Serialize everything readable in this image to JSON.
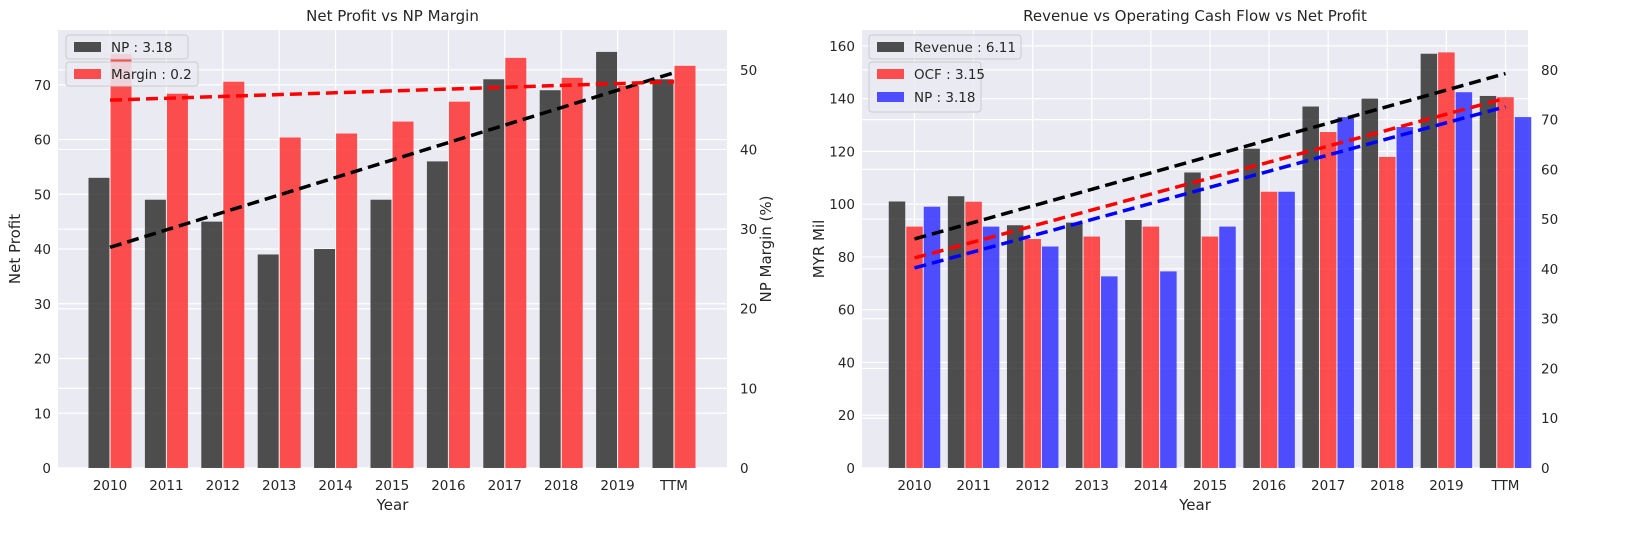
{
  "chart_data": [
    {
      "type": "bar",
      "title": "Net Profit vs NP Margin",
      "xlabel": "Year",
      "ylabel": "Net Profit",
      "y2label": "NP Margin (%)",
      "categories": [
        "2010",
        "2011",
        "2012",
        "2013",
        "2014",
        "2015",
        "2016",
        "2017",
        "2018",
        "2019",
        "TTM"
      ],
      "ylim": [
        0,
        80
      ],
      "y2lim": [
        0,
        55
      ],
      "yticks": [
        0,
        10,
        20,
        30,
        40,
        50,
        60,
        70
      ],
      "y2ticks": [
        0,
        10,
        20,
        30,
        40,
        50
      ],
      "grid": true,
      "legend_position": "top-left",
      "series": [
        {
          "name": "NP : 3.18",
          "axis": "left",
          "color": "#333333",
          "values": [
            53,
            49,
            45,
            39,
            40,
            49,
            56,
            71,
            69,
            76,
            71
          ]
        },
        {
          "name": "Margin : 0.2",
          "axis": "right",
          "color": "#ff3333",
          "values": [
            52,
            47,
            48.5,
            41.5,
            42,
            43.5,
            46,
            51.5,
            49,
            48,
            50.5
          ]
        }
      ],
      "trendlines": [
        {
          "series": "NP : 3.18",
          "axis": "left",
          "color": "#000000",
          "from": [
            0,
            40.3
          ],
          "to": [
            10,
            72.2
          ]
        },
        {
          "series": "Margin : 0.2",
          "axis": "right",
          "color": "#ff0000",
          "from": [
            0,
            46.2
          ],
          "to": [
            10,
            48.5
          ]
        }
      ]
    },
    {
      "type": "bar",
      "title": "Revenue vs Operating Cash Flow vs Net Profit",
      "xlabel": "Year",
      "ylabel": "MYR Mil",
      "categories": [
        "2010",
        "2011",
        "2012",
        "2013",
        "2014",
        "2015",
        "2016",
        "2017",
        "2018",
        "2019",
        "TTM"
      ],
      "ylim": [
        0,
        166
      ],
      "y2lim": [
        0,
        88
      ],
      "yticks": [
        0,
        20,
        40,
        60,
        80,
        100,
        120,
        140,
        160
      ],
      "y2ticks": [
        0,
        10,
        20,
        30,
        40,
        50,
        60,
        70,
        80
      ],
      "grid": true,
      "legend_position": "top-left",
      "series": [
        {
          "name": "Revenue : 6.11",
          "axis": "left",
          "color": "#333333",
          "values": [
            101,
            103,
            92,
            93,
            94,
            112,
            121,
            137,
            140,
            157,
            141
          ]
        },
        {
          "name": "OCF : 3.15",
          "axis": "right",
          "color": "#ff3333",
          "values": [
            48.5,
            53.5,
            46,
            46.5,
            48.5,
            46.5,
            55.5,
            67.5,
            62.5,
            83.5,
            74.5
          ]
        },
        {
          "name": "NP : 3.18",
          "axis": "right",
          "color": "#3333ff",
          "values": [
            52.5,
            48.5,
            44.5,
            38.5,
            39.5,
            48.5,
            55.5,
            70.5,
            68.5,
            75.5,
            70.5
          ]
        }
      ],
      "trendlines": [
        {
          "series": "Revenue : 6.11",
          "axis": "left",
          "color": "#000000",
          "from": [
            0,
            86.8
          ],
          "to": [
            10,
            149.5
          ]
        },
        {
          "series": "OCF : 3.15",
          "axis": "right",
          "color": "#ff0000",
          "from": [
            0,
            42.2
          ],
          "to": [
            10,
            74.3
          ]
        },
        {
          "series": "NP : 3.18",
          "axis": "right",
          "color": "#0000ff",
          "from": [
            0,
            40.2
          ],
          "to": [
            10,
            72.6
          ]
        }
      ]
    }
  ]
}
